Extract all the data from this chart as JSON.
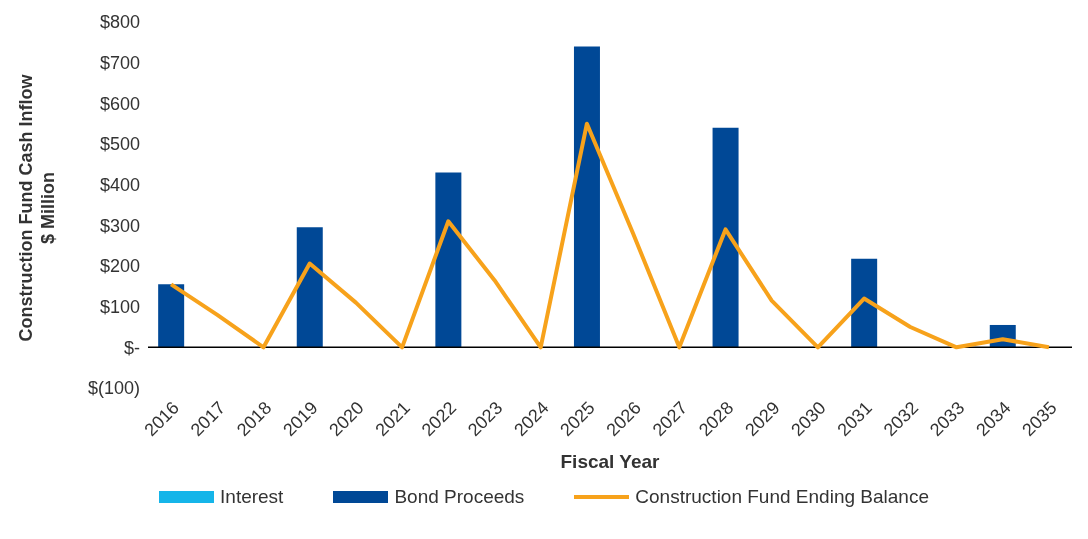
{
  "chart_data": {
    "type": "bar",
    "stacked": true,
    "xlabel": "Fiscal Year",
    "ylabel": "Construction Fund Cash Inflow\n$ Million",
    "categories": [
      "2016",
      "2017",
      "2018",
      "2019",
      "2020",
      "2021",
      "2022",
      "2023",
      "2024",
      "2025",
      "2026",
      "2027",
      "2028",
      "2029",
      "2030",
      "2031",
      "2032",
      "2033",
      "2034",
      "2035"
    ],
    "series": [
      {
        "name": "Interest",
        "color": "#15b5e9",
        "values": [
          0,
          0,
          0,
          0,
          0,
          0,
          0,
          0,
          0,
          0,
          0,
          0,
          0,
          0,
          0,
          0,
          0,
          0,
          0,
          0
        ]
      },
      {
        "name": "Bond Proceeds",
        "color": "#004896",
        "values": [
          155,
          0,
          0,
          295,
          0,
          0,
          430,
          0,
          0,
          740,
          0,
          0,
          540,
          0,
          0,
          218,
          0,
          0,
          55,
          0
        ]
      },
      {
        "name": "Construction Fund Ending Balance",
        "type": "line",
        "color": "#f7a21b",
        "values": [
          155,
          80,
          0,
          206,
          110,
          0,
          310,
          165,
          0,
          550,
          280,
          0,
          290,
          115,
          0,
          120,
          50,
          0,
          20,
          0
        ]
      }
    ],
    "ylim": [
      -100,
      800
    ],
    "yticks": [
      {
        "value": -100,
        "label": "$(100)"
      },
      {
        "value": 0,
        "label": "$-"
      },
      {
        "value": 100,
        "label": "$100"
      },
      {
        "value": 200,
        "label": "$200"
      },
      {
        "value": 300,
        "label": "$300"
      },
      {
        "value": 400,
        "label": "$400"
      },
      {
        "value": 500,
        "label": "$500"
      },
      {
        "value": 600,
        "label": "$600"
      },
      {
        "value": 700,
        "label": "$700"
      },
      {
        "value": 800,
        "label": "$800"
      }
    ],
    "legend": "bottom",
    "line_style": "solid",
    "marker": "none"
  }
}
